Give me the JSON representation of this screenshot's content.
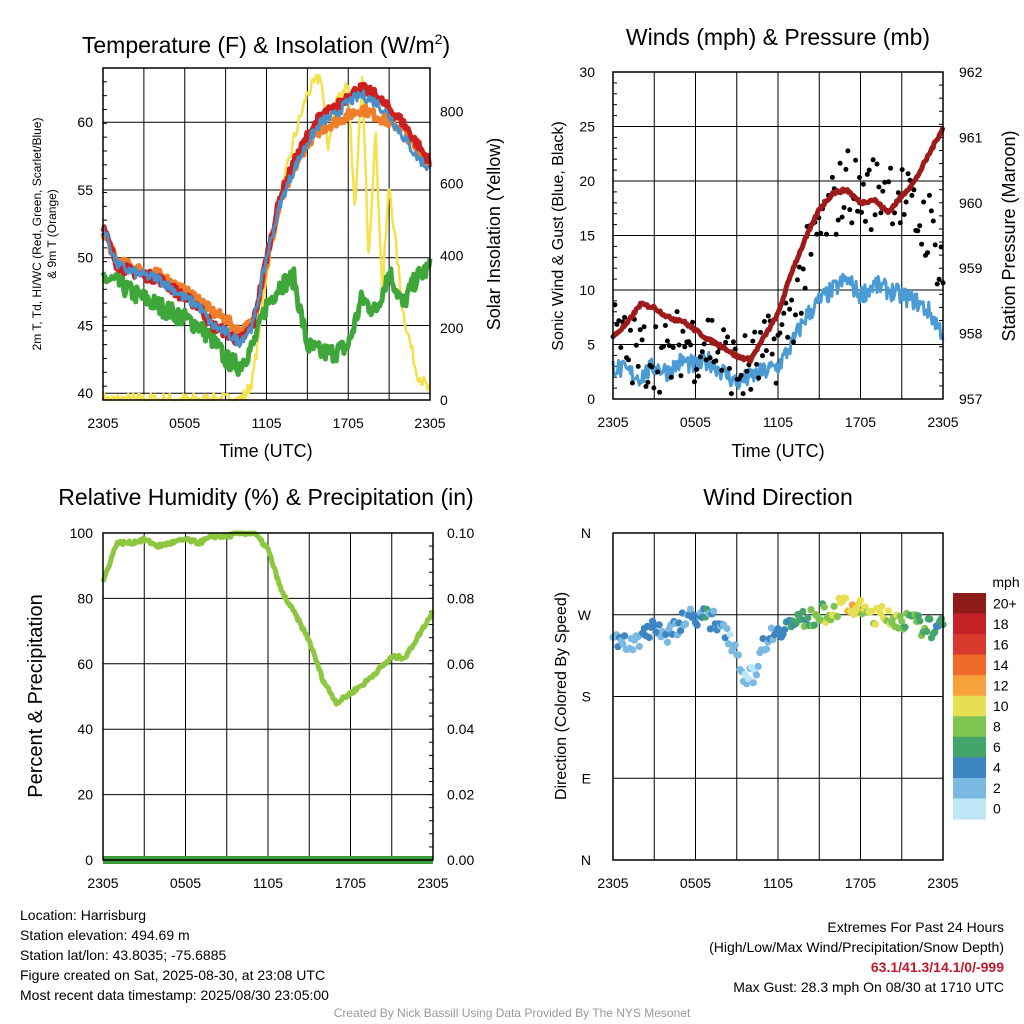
{
  "colors": {
    "temp_red": "#cc1f1f",
    "dewpoint_green": "#3fa63a",
    "hiwc_blue": "#4a90c8",
    "temp9m_orange": "#f07d2a",
    "insolation_yellow": "#f5e14b",
    "wind_blue": "#4b9bd4",
    "gust_black": "#000000",
    "pressure_maroon": "#9e1b1b",
    "rh_green": "#8dc63f",
    "precip_green": "#3a9a3a"
  },
  "speed_scale": {
    "unit": "mph",
    "labels": [
      "20+",
      "18",
      "16",
      "14",
      "12",
      "10",
      "8",
      "6",
      "4",
      "2",
      "0"
    ],
    "colors": [
      "#8e1a1a",
      "#c42226",
      "#d93a2e",
      "#ef6a2b",
      "#f6a13b",
      "#e6df52",
      "#7ec450",
      "#44a56a",
      "#3d85c2",
      "#7ab9e2",
      "#bde6f7"
    ]
  },
  "chart_data": [
    {
      "id": "temperature",
      "type": "line",
      "title": "Temperature (F) & Insolation (W/m2)",
      "title_main": "Temperature (F) & Insolation (W/m",
      "title_sup": "2",
      "title_close": ")",
      "xlabel": "Time (UTC)",
      "ylabel": "2m T, Td, HI/WC (Red, Green, Scarlet/Blue) & 9m T (Orange)",
      "ylabel_line1": "2m T, Td, HI/WC (Red, Green, Scarlet/Blue)",
      "ylabel_line2": "& 9m T (Orange)",
      "y2label": "Solar Insolation (Yellow)",
      "x_ticks": [
        "2305",
        "0505",
        "1105",
        "1705",
        "2305"
      ],
      "ylim": [
        39.5,
        64
      ],
      "y_ticks": [
        40,
        45,
        50,
        55,
        60
      ],
      "y2lim": [
        0,
        920
      ],
      "y2_ticks": [
        0,
        200,
        400,
        600,
        800
      ],
      "x_hours": [
        0,
        1,
        2,
        3,
        4,
        5,
        6,
        7,
        8,
        9,
        10,
        11,
        12,
        13,
        14,
        15,
        16,
        17,
        18,
        19,
        20,
        21,
        22,
        23,
        24
      ],
      "series": [
        {
          "name": "2m T",
          "color_key": "temp_red",
          "values": [
            52.3,
            49.5,
            49.0,
            48.7,
            48.5,
            47.8,
            47.0,
            46.5,
            45.0,
            44.5,
            43.8,
            45.0,
            50.0,
            54.5,
            57.0,
            59.0,
            60.5,
            61.0,
            62.0,
            62.5,
            62.0,
            61.0,
            60.0,
            58.5,
            57.0
          ]
        },
        {
          "name": "9m T",
          "color_key": "temp9m_orange",
          "values": [
            52.0,
            49.7,
            49.4,
            49.0,
            48.8,
            48.2,
            47.5,
            47.0,
            46.0,
            45.5,
            44.5,
            45.2,
            49.5,
            54.0,
            56.5,
            58.5,
            59.5,
            60.0,
            60.5,
            61.0,
            60.5,
            60.0,
            59.5,
            58.0,
            57.0
          ]
        },
        {
          "name": "HI/WC",
          "color_key": "hiwc_blue",
          "values": [
            52.3,
            49.5,
            49.0,
            48.7,
            48.5,
            47.8,
            47.0,
            46.5,
            45.0,
            44.5,
            43.8,
            45.0,
            50.0,
            54.0,
            56.5,
            58.5,
            60.0,
            60.5,
            61.5,
            62.0,
            61.5,
            60.5,
            59.0,
            57.5,
            56.5
          ]
        },
        {
          "name": "2m Td",
          "color_key": "dewpoint_green",
          "values": [
            48.5,
            48.2,
            47.5,
            47.0,
            46.5,
            46.0,
            45.5,
            45.0,
            44.0,
            42.5,
            42.0,
            43.5,
            46.5,
            48.0,
            48.5,
            43.5,
            43.0,
            43.0,
            43.5,
            47.0,
            46.0,
            49.0,
            46.5,
            48.5,
            49.3
          ]
        }
      ],
      "insolation": {
        "x_hours": [
          0,
          1,
          2,
          3,
          4,
          5,
          6,
          7,
          8,
          9,
          10,
          10.5,
          11,
          11.5,
          12,
          13,
          14,
          15,
          16,
          16.5,
          17,
          18,
          18.5,
          19,
          19.5,
          20,
          20.5,
          21,
          22,
          23,
          24
        ],
        "values": [
          0,
          0,
          0,
          0,
          0,
          0,
          0,
          0,
          0,
          0,
          0,
          15,
          60,
          200,
          350,
          550,
          720,
          850,
          900,
          700,
          820,
          880,
          500,
          900,
          400,
          750,
          300,
          600,
          250,
          80,
          20
        ]
      }
    },
    {
      "id": "winds",
      "type": "line",
      "title": "Winds (mph) & Pressure (mb)",
      "xlabel": "Time (UTC)",
      "ylabel": "Sonic Wind & Gust (Blue, Black)",
      "y2label": "Station Pressure (Maroon)",
      "x_ticks": [
        "2305",
        "0505",
        "1105",
        "1705",
        "2305"
      ],
      "ylim": [
        0,
        30
      ],
      "y_ticks": [
        0,
        5,
        10,
        15,
        20,
        25,
        30
      ],
      "y2lim": [
        957,
        962
      ],
      "y2_ticks": [
        957,
        958,
        959,
        960,
        961,
        962
      ],
      "x_hours": [
        0,
        1,
        2,
        3,
        4,
        5,
        6,
        7,
        8,
        9,
        10,
        11,
        12,
        13,
        14,
        15,
        16,
        17,
        18,
        19,
        20,
        21,
        22,
        23,
        24
      ],
      "series": [
        {
          "name": "Sonic Wind",
          "color_key": "wind_blue",
          "values": [
            3.0,
            2.5,
            2.0,
            3.0,
            2.5,
            3.5,
            3.0,
            3.5,
            2.5,
            1.5,
            2.0,
            2.5,
            3.0,
            5.0,
            7.5,
            9.0,
            10.0,
            11.0,
            9.5,
            10.5,
            10.0,
            9.5,
            9.0,
            8.0,
            6.0
          ]
        },
        {
          "name": "Gust",
          "color_key": "gust_black",
          "values": [
            6.0,
            4.5,
            4.0,
            4.5,
            3.5,
            5.5,
            5.0,
            5.5,
            4.0,
            2.5,
            3.0,
            4.0,
            5.0,
            8.0,
            12.0,
            15.5,
            17.5,
            20.0,
            18.5,
            19.0,
            20.0,
            18.5,
            16.5,
            16.0,
            12.0
          ]
        },
        {
          "name": "Station Pressure",
          "color_key": "pressure_maroon",
          "values": [
            957.95,
            958.15,
            958.45,
            958.4,
            958.25,
            958.2,
            958.05,
            957.9,
            957.8,
            957.65,
            957.6,
            957.95,
            958.3,
            958.95,
            959.45,
            959.9,
            960.15,
            960.2,
            960.0,
            960.05,
            959.85,
            960.1,
            960.35,
            960.75,
            961.15
          ]
        }
      ]
    },
    {
      "id": "humidity",
      "type": "line",
      "title": "Relative Humidity (%) & Precipitation (in)",
      "xlabel": "",
      "ylabel": "Percent & Precipitation",
      "x_ticks": [
        "2305",
        "0505",
        "1105",
        "1705",
        "2305"
      ],
      "ylim": [
        0,
        100
      ],
      "y_ticks": [
        0,
        20,
        40,
        60,
        80,
        100
      ],
      "y2lim": [
        0,
        0.1
      ],
      "y2_ticks": [
        "0.00",
        "0.02",
        "0.04",
        "0.06",
        "0.08",
        "0.10"
      ],
      "x_hours": [
        0,
        1,
        2,
        3,
        4,
        5,
        6,
        7,
        8,
        9,
        10,
        11,
        12,
        13,
        14,
        15,
        16,
        17,
        18,
        19,
        20,
        21,
        22,
        23,
        24
      ],
      "series": [
        {
          "name": "RH",
          "color_key": "rh_green",
          "values": [
            85,
            97,
            97,
            98,
            96,
            97,
            98,
            97,
            99,
            99,
            100,
            100,
            95,
            82,
            75,
            67,
            55,
            48,
            51,
            54,
            58,
            62,
            62,
            69,
            76
          ]
        },
        {
          "name": "Precipitation",
          "color_key": "precip_green",
          "values": [
            0,
            0,
            0,
            0,
            0,
            0,
            0,
            0,
            0,
            0,
            0,
            0,
            0,
            0,
            0,
            0,
            0,
            0,
            0,
            0,
            0,
            0,
            0,
            0,
            0
          ]
        }
      ]
    },
    {
      "id": "direction",
      "type": "scatter",
      "title": "Wind Direction",
      "ylabel": "Direction (Colored By Speed)",
      "x_ticks": [
        "2305",
        "0505",
        "1105",
        "1705",
        "2305"
      ],
      "y_ticks": [
        "N",
        "E",
        "S",
        "W",
        "N"
      ],
      "ylim": [
        0,
        360
      ],
      "x_hours": [
        0,
        1,
        2,
        3,
        4,
        5,
        6,
        7,
        8,
        9,
        9.5,
        10,
        10.5,
        11,
        12,
        13,
        14,
        15,
        16,
        17,
        18,
        19,
        20,
        21,
        22,
        23,
        24
      ],
      "direction_deg": [
        250,
        235,
        245,
        260,
        245,
        265,
        270,
        265,
        260,
        230,
        205,
        200,
        215,
        240,
        255,
        260,
        265,
        270,
        275,
        280,
        275,
        270,
        268,
        265,
        260,
        255,
        255
      ],
      "speed_mph": [
        3,
        3,
        2,
        4,
        2,
        3,
        3,
        4,
        3,
        1,
        1,
        0,
        2,
        3,
        3,
        5,
        6,
        7,
        9,
        11,
        10,
        10,
        9,
        8,
        7,
        6,
        5
      ]
    }
  ],
  "info": {
    "location": "Location: Harrisburg",
    "elevation": "Station elevation: 494.69 m",
    "latlon": "Station lat/lon: 43.8035; -75.6885",
    "created": "Figure created on Sat, 2025-08-30, at 23:08 UTC",
    "recent": "Most recent data timestamp: 2025/08/30 23:05:00"
  },
  "extremes": {
    "heading": "Extremes For Past 24 Hours",
    "subheading": "(High/Low/Max Wind/Precipitation/Snow Depth)",
    "values": "63.1/41.3/14.1/0/-999",
    "max_gust": "Max Gust: 28.3 mph On 08/30 at 1710 UTC"
  },
  "credit": "Created By Nick Bassill Using Data Provided By The NYS Mesonet"
}
